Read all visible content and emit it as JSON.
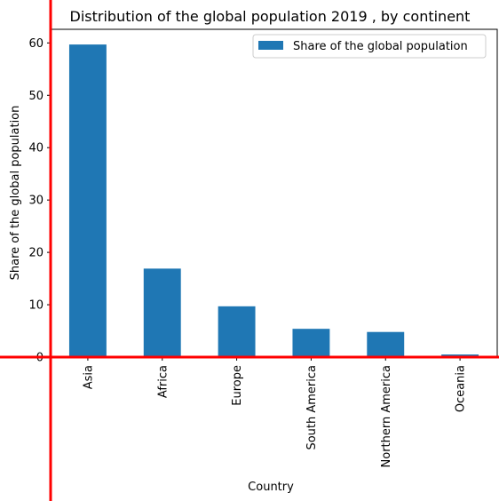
{
  "chart_data": {
    "type": "bar",
    "title": "Distribution of the global population 2019 , by continent",
    "xlabel": "Country",
    "ylabel": "Share of the global population",
    "categories": [
      "Asia",
      "Africa",
      "Europe",
      "South America",
      "Northern America",
      "Oceania"
    ],
    "series": [
      {
        "name": "Share of the global population",
        "values": [
          59.7,
          16.9,
          9.7,
          5.4,
          4.8,
          0.5
        ]
      }
    ],
    "ylim": [
      0,
      62.6
    ],
    "yticks": [
      "0",
      "10",
      "20",
      "30",
      "40",
      "50",
      "60"
    ],
    "grid": false,
    "legend_position": "top-right",
    "colors": {
      "bar": "#1f77b4",
      "crosshair": "#ff0000"
    }
  }
}
